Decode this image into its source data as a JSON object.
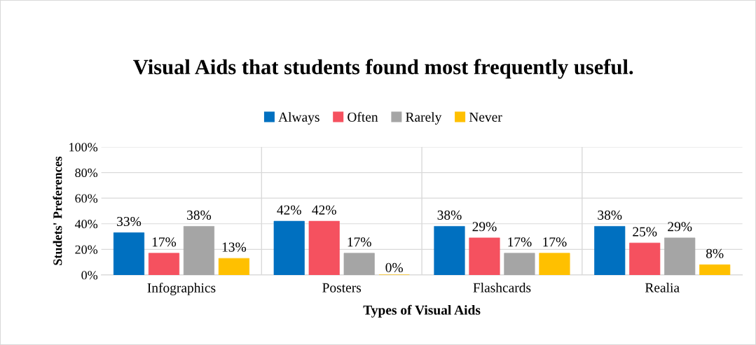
{
  "chart_data": {
    "type": "bar",
    "title": "Visual Aids that students found most frequently useful.",
    "xlabel": "Types of Visual Aids",
    "ylabel": "Studets' Preferences",
    "categories": [
      "Infographics",
      "Posters",
      "Flashcards",
      "Realia"
    ],
    "series": [
      {
        "name": "Always",
        "color": "#0070c0",
        "values": [
          33,
          42,
          38,
          38
        ],
        "value_labels": [
          "33%",
          "42%",
          "38%",
          "38%"
        ]
      },
      {
        "name": "Often",
        "color": "#f5515f",
        "values": [
          17,
          42,
          29,
          25
        ],
        "value_labels": [
          "17%",
          "42%",
          "29%",
          "25%"
        ]
      },
      {
        "name": "Rarely",
        "color": "#a5a5a5",
        "values": [
          38,
          17,
          17,
          29
        ],
        "value_labels": [
          "38%",
          "17%",
          "17%",
          "29%"
        ]
      },
      {
        "name": "Never",
        "color": "#ffc000",
        "values": [
          13,
          0,
          17,
          8
        ],
        "value_labels": [
          "13%",
          "0%",
          "17%",
          "8%"
        ]
      }
    ],
    "ylim": [
      0,
      100
    ],
    "yticks": [
      {
        "value": 0,
        "label": "0%"
      },
      {
        "value": 20,
        "label": "20%"
      },
      {
        "value": 40,
        "label": "40%"
      },
      {
        "value": 60,
        "label": "60%"
      },
      {
        "value": 80,
        "label": "80%"
      },
      {
        "value": 100,
        "label": "100%"
      }
    ],
    "grid": true,
    "legend": "top"
  }
}
